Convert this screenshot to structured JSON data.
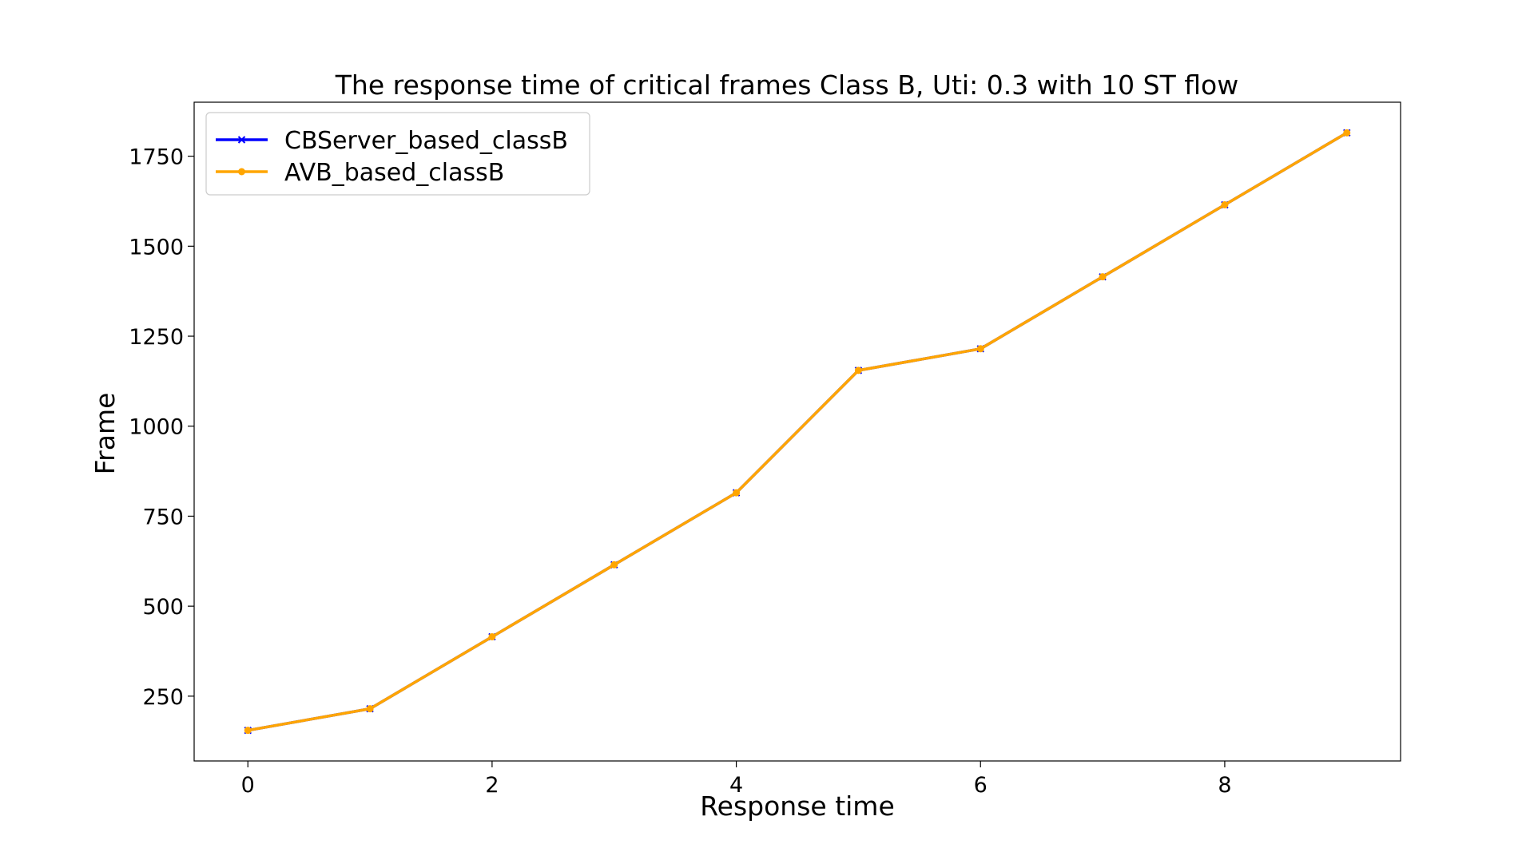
{
  "chart_data": {
    "type": "line",
    "title": "The response time of critical frames Class B, Uti: 0.3 with 10 ST flow",
    "xlabel": "Response time",
    "ylabel": "Frame",
    "x": [
      0,
      1,
      2,
      3,
      4,
      5,
      6,
      7,
      8,
      9
    ],
    "xlim": [
      -0.44,
      9.44
    ],
    "ylim": [
      70,
      1900
    ],
    "xticks": [
      0,
      2,
      4,
      6,
      8
    ],
    "yticks": [
      250,
      500,
      750,
      1000,
      1250,
      1500,
      1750
    ],
    "grid": false,
    "legend_position": "upper-left",
    "series": [
      {
        "name": "CBServer_based_classB",
        "values": [
          155,
          215,
          415,
          615,
          815,
          1155,
          1215,
          1415,
          1615,
          1815
        ],
        "color": "#0000ff",
        "marker": "x"
      },
      {
        "name": "AVB_based_classB",
        "values": [
          155,
          215,
          415,
          615,
          815,
          1155,
          1215,
          1415,
          1615,
          1815
        ],
        "color": "#ffa500",
        "marker": "circle"
      }
    ]
  }
}
